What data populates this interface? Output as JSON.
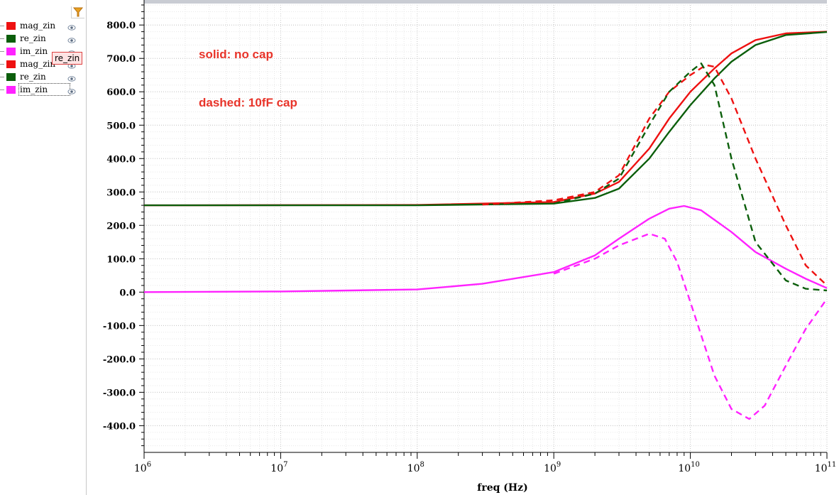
{
  "legend": {
    "items": [
      {
        "label": "mag_zin",
        "color": "#ee1111",
        "icon": "eye-icon"
      },
      {
        "label": "re_zin",
        "color": "#0b5e0b",
        "icon": "eye-icon"
      },
      {
        "label": "im_zin",
        "color": "#ff22ff",
        "icon": "eye-icon"
      },
      {
        "label": "mag_zin",
        "color": "#ee1111",
        "icon": "eye-icon"
      },
      {
        "label": "re_zin",
        "color": "#0b5e0b",
        "icon": "eye-icon"
      },
      {
        "label": "im_zin",
        "color": "#ff22ff",
        "icon": "eye-icon"
      }
    ],
    "tooltip": "re_zin",
    "filter_icon": "filter-icon"
  },
  "annotations": {
    "solid": "solid: no cap",
    "dashed": "dashed: 10fF cap"
  },
  "chart_data": {
    "type": "line",
    "xlabel": "freq (Hz)",
    "x_scale": "log",
    "xlim": [
      1000000,
      100000000000
    ],
    "ylim": [
      -480,
      860
    ],
    "grid": true,
    "x_ticks": [
      1000000,
      10000000,
      100000000,
      1000000000,
      10000000000,
      100000000000
    ],
    "x_tick_labels": [
      {
        "base": "10",
        "exp": "6"
      },
      {
        "base": "10",
        "exp": "7"
      },
      {
        "base": "10",
        "exp": "8"
      },
      {
        "base": "10",
        "exp": "9"
      },
      {
        "base": "10",
        "exp": "10"
      },
      {
        "base": "10",
        "exp": "11"
      }
    ],
    "y_ticks": [
      800,
      700,
      600,
      500,
      400,
      300,
      200,
      100,
      0,
      -100,
      -200,
      -300,
      -400
    ],
    "y_tick_labels": [
      "800.0",
      "700.0",
      "600.0",
      "500.0",
      "400.0",
      "300.0",
      "200.0",
      "100.0",
      "0.0",
      "-100.0",
      "-200.0",
      "-300.0",
      "-400.0"
    ],
    "series": [
      {
        "name": "mag_zin",
        "color": "#ee1111",
        "dash": false,
        "x": [
          1000000,
          100000000,
          1000000000,
          2000000000,
          3000000000,
          5000000000,
          7000000000,
          10000000000,
          15000000000,
          20000000000,
          30000000000,
          50000000000,
          100000000000
        ],
        "y": [
          260,
          261,
          270,
          295,
          330,
          430,
          520,
          600,
          670,
          715,
          755,
          775,
          780
        ]
      },
      {
        "name": "re_zin",
        "color": "#0b5e0b",
        "dash": false,
        "x": [
          1000000,
          100000000,
          1000000000,
          2000000000,
          3000000000,
          5000000000,
          7000000000,
          10000000000,
          15000000000,
          20000000000,
          30000000000,
          50000000000,
          100000000000
        ],
        "y": [
          260,
          260,
          265,
          282,
          310,
          400,
          480,
          560,
          640,
          690,
          740,
          770,
          779
        ]
      },
      {
        "name": "im_zin",
        "color": "#ff22ff",
        "dash": false,
        "x": [
          1000000,
          10000000,
          100000000,
          300000000,
          1000000000,
          2000000000,
          3000000000,
          5000000000,
          7000000000,
          9000000000,
          12000000000,
          20000000000,
          30000000000,
          50000000000,
          70000000000,
          100000000000
        ],
        "y": [
          0,
          2,
          8,
          25,
          60,
          110,
          160,
          220,
          250,
          258,
          245,
          180,
          120,
          70,
          40,
          12
        ]
      },
      {
        "name": "mag_zin",
        "color": "#ee1111",
        "dash": true,
        "x": [
          300000000,
          1000000000,
          2000000000,
          3000000000,
          5000000000,
          7000000000,
          10000000000,
          13000000000,
          15000000000,
          20000000000,
          30000000000,
          50000000000,
          70000000000,
          100000000000
        ],
        "y": [
          262,
          275,
          300,
          350,
          520,
          600,
          650,
          680,
          675,
          580,
          400,
          200,
          80,
          20
        ]
      },
      {
        "name": "re_zin",
        "color": "#0b5e0b",
        "dash": true,
        "x": [
          1000000000,
          2000000000,
          3000000000,
          5000000000,
          7000000000,
          10000000000,
          12000000000,
          15000000000,
          20000000000,
          30000000000,
          50000000000,
          70000000000,
          100000000000
        ],
        "y": [
          265,
          295,
          340,
          500,
          600,
          660,
          685,
          620,
          400,
          150,
          35,
          10,
          5
        ]
      },
      {
        "name": "im_zin",
        "color": "#ff22ff",
        "dash": true,
        "x": [
          1000000000,
          2000000000,
          3000000000,
          5000000000,
          6500000000,
          8000000000,
          10000000000,
          15000000000,
          20000000000,
          27000000000,
          35000000000,
          50000000000,
          70000000000,
          100000000000
        ],
        "y": [
          55,
          100,
          140,
          175,
          160,
          90,
          -30,
          -250,
          -350,
          -380,
          -340,
          -220,
          -110,
          -20
        ]
      }
    ]
  }
}
